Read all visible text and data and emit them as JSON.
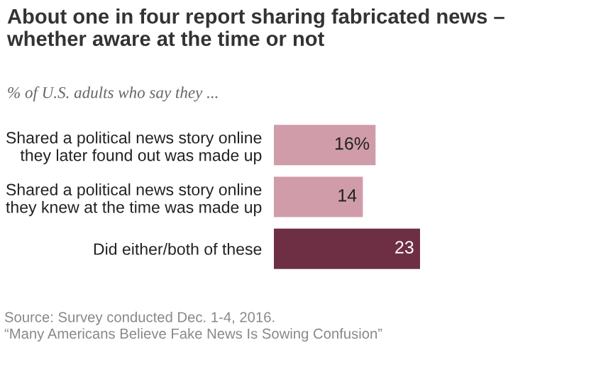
{
  "chart_data": {
    "type": "bar",
    "orientation": "horizontal",
    "title": "About one in four report sharing fabricated news –\nwhether aware at the time or not",
    "subtitle": "% of U.S. adults who say they ...",
    "categories": [
      "Shared a political news story online\nthey later found out was made up",
      "Shared a political news story online\nthey knew at the time was made up",
      "Did either/both of these"
    ],
    "values": [
      16,
      14,
      23
    ],
    "colors": [
      "#d09caa",
      "#d09caa",
      "#6e2f45"
    ],
    "value_labels": [
      "16%",
      "14",
      "23"
    ],
    "annotations": [
      "Source: Survey conducted Dec. 1-4, 2016.\n“Many Americans Believe Fake News Is Sowing Confusion”"
    ]
  }
}
